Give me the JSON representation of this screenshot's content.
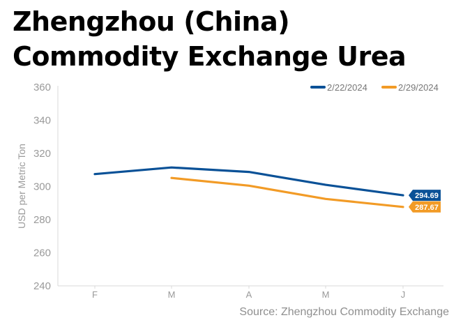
{
  "title": "Zhengzhou (China) Commodity Exchange Urea",
  "source": "Source: Zhengzhou Commodity Exchange",
  "chart_data": {
    "type": "line",
    "title": "Zhengzhou (China) Commodity Exchange Urea",
    "ylabel": "USD per Metric Ton",
    "xlabel": "",
    "categories": [
      "F",
      "M",
      "A",
      "M",
      "J"
    ],
    "ylim": [
      240,
      360
    ],
    "yticks": [
      240,
      260,
      280,
      300,
      320,
      340,
      360
    ],
    "grid": false,
    "legend": "top-right",
    "series": [
      {
        "name": "2/22/2024",
        "color": "#0a5197",
        "values": [
          307.5,
          311.5,
          308.8,
          301.0,
          294.69
        ],
        "end_label": "294.69"
      },
      {
        "name": "2/29/2024",
        "color": "#f29b26",
        "values": [
          null,
          305.2,
          300.5,
          292.5,
          287.67
        ],
        "end_label": "287.67"
      }
    ]
  }
}
